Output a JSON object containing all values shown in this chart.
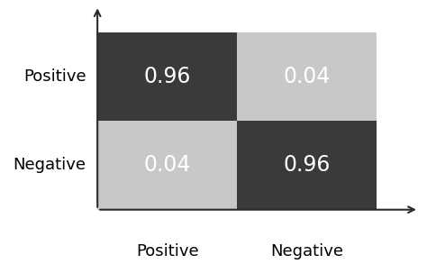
{
  "matrix": [
    [
      0.96,
      0.04
    ],
    [
      0.04,
      0.96
    ]
  ],
  "cell_colors": [
    [
      "#3a3a3a",
      "#c8c8c8"
    ],
    [
      "#c8c8c8",
      "#3a3a3a"
    ]
  ],
  "text_color": "#ffffff",
  "row_labels": [
    "Positive",
    "Negative"
  ],
  "col_labels": [
    "Positive",
    "Negative"
  ],
  "label_fontsize": 13,
  "value_fontsize": 17,
  "background_color": "#ffffff",
  "arrow_color": "#2a2a2a"
}
